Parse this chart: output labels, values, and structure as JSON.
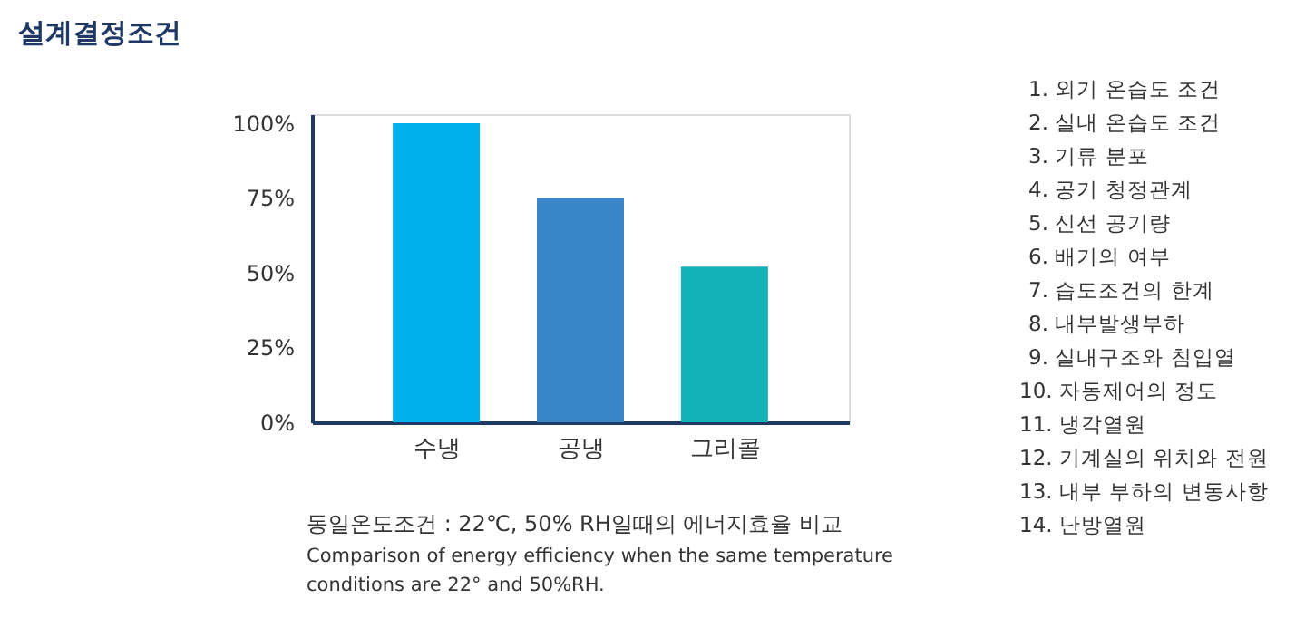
{
  "chart_data": {
    "type": "bar",
    "title": "설계결정조건",
    "categories": [
      "수냉",
      "공냉",
      "그리콜"
    ],
    "values": [
      100,
      75,
      52
    ],
    "colors": [
      "#00b0ec",
      "#3a86c8",
      "#13b3b8"
    ],
    "ylim": [
      0,
      103
    ],
    "yticks": [
      {
        "value": 0,
        "label": "0%"
      },
      {
        "value": 25,
        "label": "25%"
      },
      {
        "value": 50,
        "label": "50%"
      },
      {
        "value": 75,
        "label": "75%"
      },
      {
        "value": 100,
        "label": "100%"
      }
    ],
    "grid": false,
    "annotations": [
      "동일온도조건 : 22℃, 50% RH일때의 에너지효율 비교",
      "Comparison of energy efficiency when the same temperature",
      "conditions are 22° and 50%RH.",
      "1. 외기 온습도 조건",
      "2. 실내 온습도 조건",
      "3. 기류 분포",
      "4. 공기 청정관계",
      "5. 신선 공기량",
      "6. 배기의 여부",
      "7. 습도조건의 한계",
      "8. 내부발생부하",
      "9. 실내구조와 침입열",
      "10. 자동제어의 정도",
      "11. 냉각열원",
      "12. 기계실의 위치와 전원",
      "13. 내부 부하의 변동사항",
      "14. 난방열원"
    ]
  }
}
